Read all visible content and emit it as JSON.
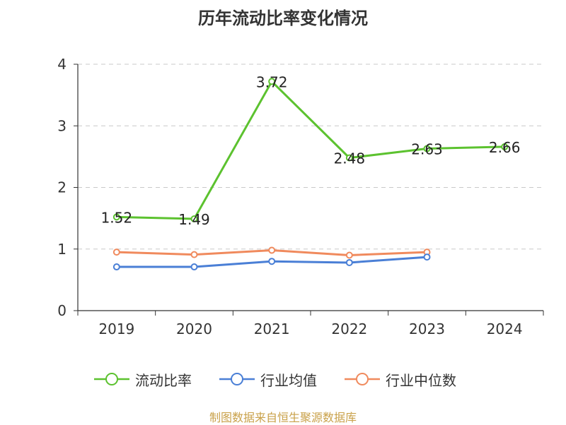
{
  "chart_data": {
    "type": "line",
    "title": "历年流动比率变化情况",
    "categories": [
      "2019",
      "2020",
      "2021",
      "2022",
      "2023",
      "2024"
    ],
    "yticks": [
      "0",
      "1",
      "2",
      "3",
      "4"
    ],
    "ylim": [
      0,
      4
    ],
    "grid": true,
    "legend_position": "bottom",
    "series": [
      {
        "name": "流动比率",
        "color": "#5cc22f",
        "values": [
          1.52,
          1.49,
          3.72,
          2.48,
          2.63,
          2.66
        ],
        "labels": [
          "1.52",
          "1.49",
          "3.72",
          "2.48",
          "2.63",
          "2.66"
        ],
        "show_labels": true
      },
      {
        "name": "行业均值",
        "color": "#4a7fd6",
        "values": [
          0.71,
          0.71,
          0.8,
          0.78,
          0.87,
          null
        ],
        "show_labels": false
      },
      {
        "name": "行业中位数",
        "color": "#f08a5d",
        "values": [
          0.95,
          0.91,
          0.98,
          0.9,
          0.95,
          null
        ],
        "show_labels": false
      }
    ]
  },
  "source_note": "制图数据来自恒生聚源数据库"
}
